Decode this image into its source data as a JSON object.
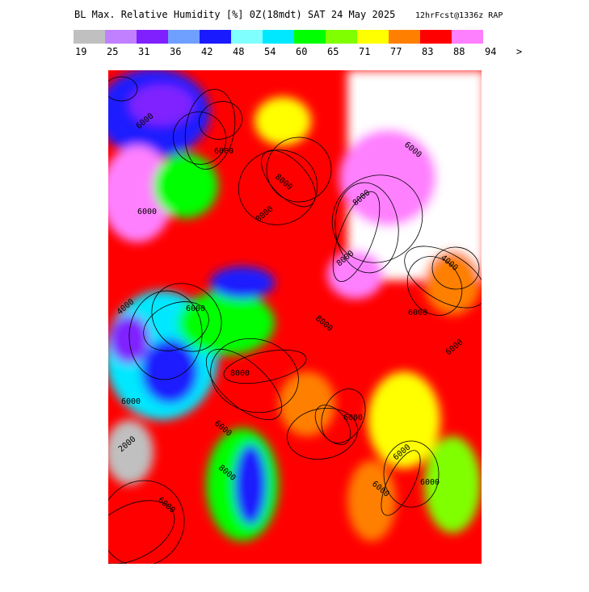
{
  "header": {
    "title": "BL Max. Relative Humidity [%] 0Z(18mdt) SAT 24 May 2025",
    "subtitle": "12hrFcst@1336z RAP"
  },
  "legend": {
    "labels": [
      "19",
      "25",
      "31",
      "36",
      "42",
      "48",
      "54",
      "60",
      "65",
      "71",
      "77",
      "83",
      "88",
      "94",
      ">"
    ],
    "colors": [
      "#c0c0c0",
      "#c080ff",
      "#8020ff",
      "#6f9fff",
      "#1a1aff",
      "#80ffff",
      "#00e8ff",
      "#00ff00",
      "#80ff00",
      "#ffff00",
      "#ff8000",
      "#ff0000",
      "#ff80ff"
    ]
  },
  "contour_labels": [
    "6000",
    "6000",
    "8000",
    "8000",
    "6000",
    "6000",
    "4000",
    "6000",
    "8000",
    "8000",
    "6000",
    "4000",
    "6000",
    "8000",
    "6000",
    "2000",
    "6000",
    "8000",
    "6000",
    "6000",
    "6000",
    "8000",
    "6000",
    "6000"
  ]
}
